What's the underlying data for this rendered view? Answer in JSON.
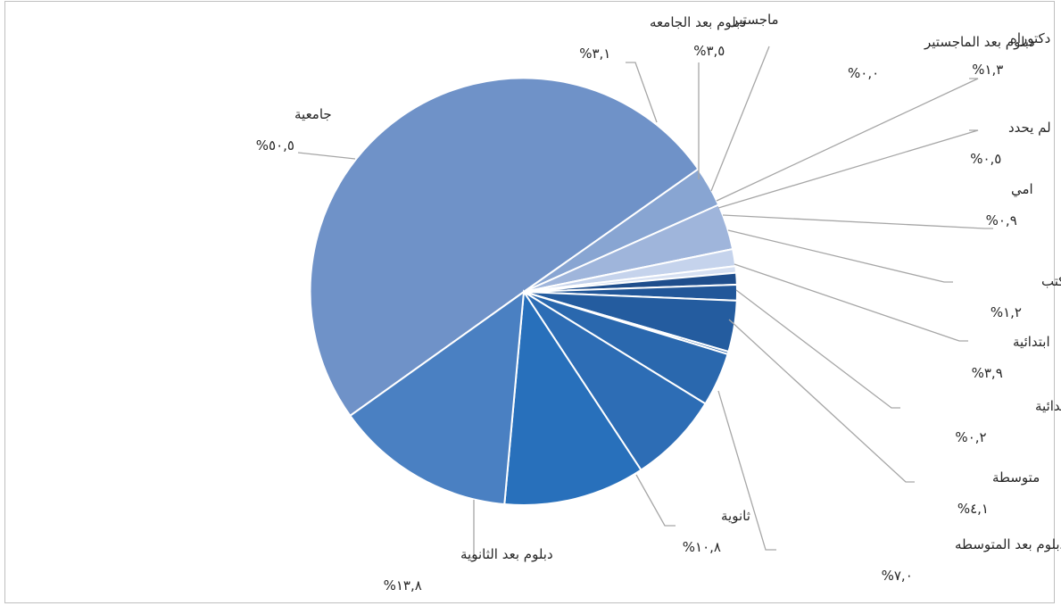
{
  "chart_data": {
    "type": "pie",
    "title": "",
    "slices": [
      {
        "name": "جامعية",
        "value_label": "%٥٠,٥",
        "value": 50.5,
        "color": "#6f92c8"
      },
      {
        "name": "دبلوم بعد الجامعه",
        "value_label": "%٣,١",
        "value": 3.1,
        "color": "#88a5d2"
      },
      {
        "name": "ماجستير",
        "value_label": "%٣,٥",
        "value": 3.5,
        "color": "#9fb5db"
      },
      {
        "name": "دبلوم بعد الماجستير",
        "value_label": "%٠,٠",
        "value": 0.0,
        "color": "#b3c4e3"
      },
      {
        "name": "دكتوراه",
        "value_label": "%١,٣",
        "value": 1.3,
        "color": "#c5d3ec"
      },
      {
        "name": "لم يحدد",
        "value_label": "%٠,٥",
        "value": 0.5,
        "color": "#d6e0f2"
      },
      {
        "name": "امي",
        "value_label": "%٠,٩",
        "value": 0.9,
        "color": "#1f4e8c"
      },
      {
        "name": "يقرأ و يكتب",
        "value_label": "%١,٢",
        "value": 1.2,
        "color": "#225799"
      },
      {
        "name": "ابتدائية",
        "value_label": "%٣,٩",
        "value": 3.9,
        "color": "#245c9f"
      },
      {
        "name": "دبلوم بعد الابتدائية",
        "value_label": "%٠,٢",
        "value": 0.2,
        "color": "#2864aa"
      },
      {
        "name": "متوسطة",
        "value_label": "%٤,١",
        "value": 4.1,
        "color": "#2a68ae"
      },
      {
        "name": "دبلوم بعد المتوسطه",
        "value_label": "%٧,٠",
        "value": 7.0,
        "color": "#2d6db5"
      },
      {
        "name": "ثانوية",
        "value_label": "%١٠,٨",
        "value": 10.8,
        "color": "#2870bb"
      },
      {
        "name": "دبلوم بعد الثانوية",
        "value_label": "%١٣,٨",
        "value": 13.8,
        "color": "#4a80c2"
      }
    ]
  }
}
